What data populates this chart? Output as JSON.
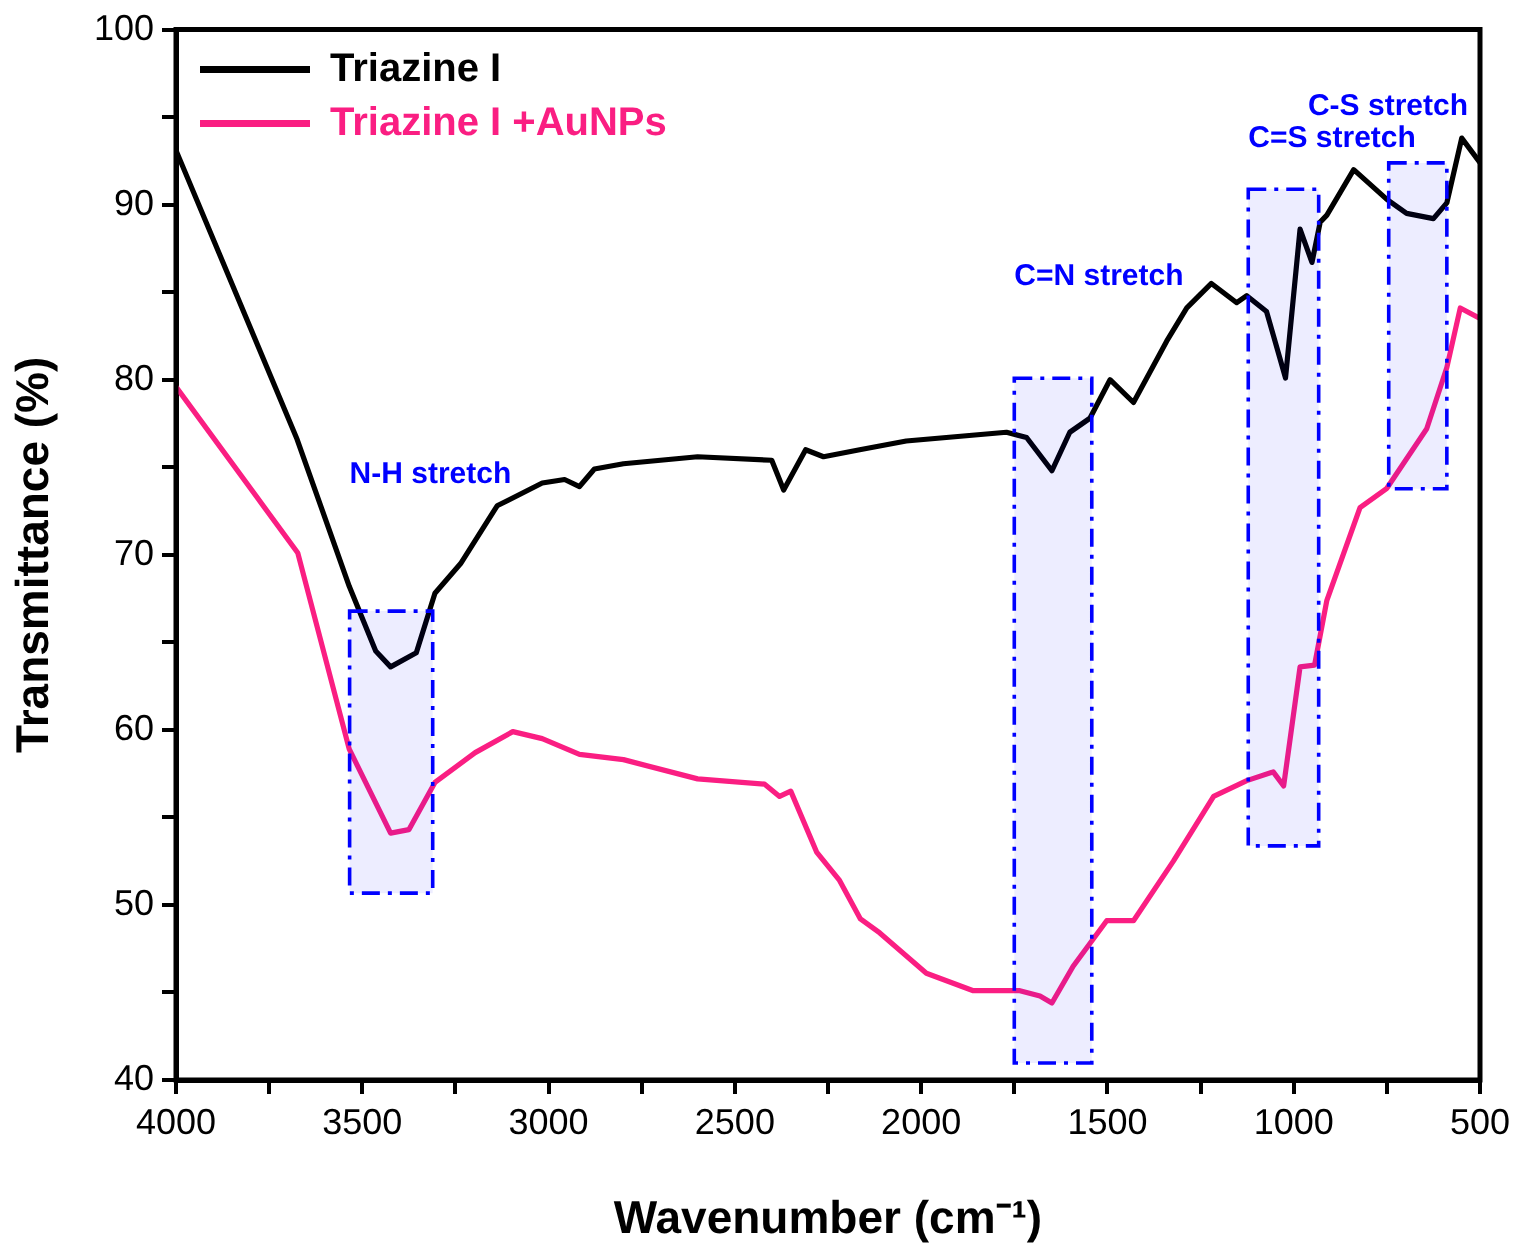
{
  "chart_data": {
    "type": "line",
    "xlabel": "Wavenumber (cm⁻¹)",
    "ylabel": "Transmittance (%)",
    "xlim": [
      4000,
      500
    ],
    "xticks": [
      4000,
      {
        "value": 3750,
        "label": null
      },
      3500,
      {
        "value": 3250,
        "label": null
      },
      3000,
      {
        "value": 2750,
        "label": null
      },
      2500,
      {
        "value": 2250,
        "label": null
      },
      2000,
      {
        "value": 1750,
        "label": null
      },
      1500,
      {
        "value": 1250,
        "label": null
      },
      1000,
      {
        "value": 750,
        "label": null
      },
      500
    ],
    "ylim": [
      40,
      100
    ],
    "yticks": [
      40,
      {
        "value": 45,
        "label": null
      },
      50,
      {
        "value": 55,
        "label": null
      },
      60,
      {
        "value": 65,
        "label": null
      },
      70,
      {
        "value": 75,
        "label": null
      },
      80,
      {
        "value": 85,
        "label": null
      },
      90,
      {
        "value": 95,
        "label": null
      },
      100
    ],
    "grid": false,
    "legend": "top left",
    "line_style": "solid",
    "series": [
      {
        "name": "Triazine I",
        "color": "#000000",
        "x": [
          4000,
          3675,
          3535,
          3464,
          3424,
          3355,
          3305,
          3236,
          3138,
          3017,
          2957,
          2917,
          2877,
          2799,
          2600,
          2401,
          2369,
          2310,
          2262,
          2165,
          2040,
          1771,
          1717,
          1649,
          1601,
          1547,
          1493,
          1430,
          1341,
          1287,
          1221,
          1153,
          1126,
          1073,
          1022,
          983,
          951,
          929,
          911,
          839,
          750,
          697,
          625,
          589,
          549,
          500
        ],
        "values": [
          93.1,
          76.6,
          68.2,
          64.5,
          63.6,
          64.4,
          67.8,
          69.5,
          72.8,
          74.1,
          74.3,
          73.9,
          74.9,
          75.2,
          75.6,
          75.4,
          73.7,
          76.0,
          75.6,
          76.0,
          76.5,
          77.0,
          76.7,
          74.8,
          77.0,
          77.8,
          80.0,
          78.7,
          82.2,
          84.1,
          85.5,
          84.4,
          84.8,
          83.9,
          80.1,
          88.6,
          86.7,
          89.0,
          89.4,
          92.0,
          90.3,
          89.5,
          89.2,
          90.1,
          93.8,
          92.4
        ]
      },
      {
        "name": "Triazine I +AuNPs",
        "color": "#fa1e82",
        "x": [
          4000,
          3673,
          3535,
          3424,
          3375,
          3305,
          3197,
          3096,
          3017,
          2917,
          2799,
          2600,
          2420,
          2380,
          2350,
          2280,
          2219,
          2163,
          2111,
          1986,
          1860,
          1735,
          1681,
          1649,
          1592,
          1502,
          1430,
          1323,
          1215,
          1126,
          1055,
          1027,
          983,
          944,
          911,
          822,
          750,
          643,
          589,
          553,
          500
        ],
        "values": [
          79.6,
          70.1,
          58.9,
          54.1,
          54.3,
          57.0,
          58.7,
          59.9,
          59.5,
          58.6,
          58.3,
          57.2,
          56.9,
          56.2,
          56.5,
          53.0,
          51.4,
          49.2,
          48.4,
          46.1,
          45.1,
          45.1,
          44.8,
          44.4,
          46.5,
          49.1,
          49.1,
          52.5,
          56.2,
          57.1,
          57.6,
          56.8,
          63.6,
          63.7,
          67.4,
          72.7,
          73.8,
          77.2,
          80.7,
          84.1,
          83.5
        ]
      }
    ],
    "bands": [
      {
        "axis": "x",
        "from": 3534,
        "to": 3311,
        "label": "N-H stretch",
        "color": "#0000ff"
      },
      {
        "axis": "x",
        "from": 1750,
        "to": 1542,
        "label": "C=N stretch",
        "color": "#0000ff"
      },
      {
        "axis": "x",
        "from": 1122,
        "to": 933,
        "label": "C=S stretch",
        "color": "#0000ff"
      },
      {
        "axis": "x",
        "from": 745,
        "to": 589,
        "label": "C-S stretch",
        "color": "#0000ff"
      }
    ]
  }
}
